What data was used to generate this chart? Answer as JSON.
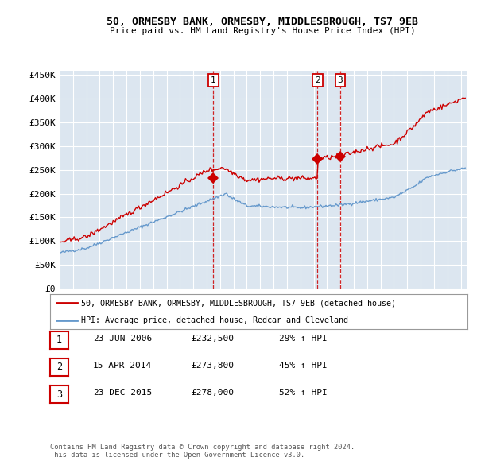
{
  "title1": "50, ORMESBY BANK, ORMESBY, MIDDLESBROUGH, TS7 9EB",
  "title2": "Price paid vs. HM Land Registry's House Price Index (HPI)",
  "ylim": [
    0,
    460000
  ],
  "xlim_start": 1995.0,
  "xlim_end": 2025.5,
  "sale_times": [
    2006.5,
    2014.29,
    2015.98
  ],
  "sale_prices": [
    232500,
    273800,
    278000
  ],
  "sale_labels": [
    "1",
    "2",
    "3"
  ],
  "legend_line1": "50, ORMESBY BANK, ORMESBY, MIDDLESBROUGH, TS7 9EB (detached house)",
  "legend_line2": "HPI: Average price, detached house, Redcar and Cleveland",
  "table_entries": [
    {
      "label": "1",
      "date": "23-JUN-2006",
      "price": "£232,500",
      "change": "29% ↑ HPI"
    },
    {
      "label": "2",
      "date": "15-APR-2014",
      "price": "£273,800",
      "change": "45% ↑ HPI"
    },
    {
      "label": "3",
      "date": "23-DEC-2015",
      "price": "£278,000",
      "change": "52% ↑ HPI"
    }
  ],
  "footnote1": "Contains HM Land Registry data © Crown copyright and database right 2024.",
  "footnote2": "This data is licensed under the Open Government Licence v3.0.",
  "red_color": "#cc0000",
  "blue_color": "#6699cc",
  "bg_color": "#dce6f0",
  "grid_color": "#ffffff",
  "vline_color": "#cc0000",
  "box_color": "#cc0000"
}
